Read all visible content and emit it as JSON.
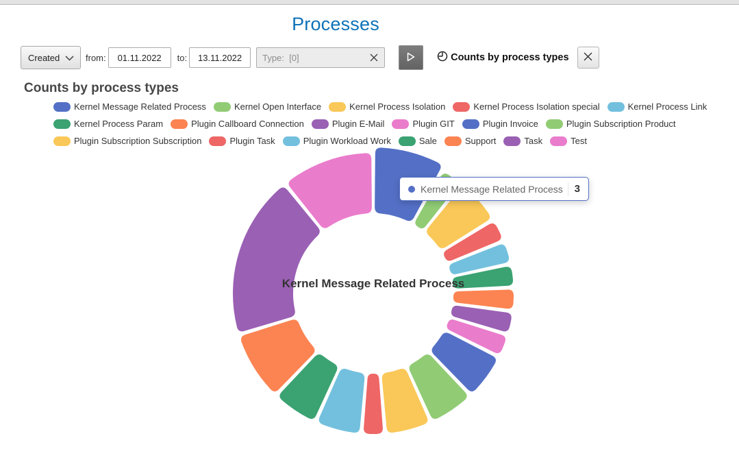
{
  "header": {
    "title": "Processes"
  },
  "toolbar": {
    "filter_select": {
      "value": "Created"
    },
    "from_label": "from:",
    "from_value": "01.11.2022",
    "to_label": "to:",
    "to_value": "13.11.2022",
    "type_field": {
      "label": "Type:",
      "value": "[0]"
    },
    "icons": {
      "filter_dropdown": "chevron-down",
      "type_clear": "x-clear",
      "run": "play-triangle",
      "chart_toggle": "clock",
      "close": "x-close"
    },
    "chart_toggle_label": "Counts by process types"
  },
  "section": {
    "heading": "Counts by process types"
  },
  "chart_data": {
    "type": "pie",
    "subtype": "donut",
    "title": "Counts by process types",
    "legend_position": "top",
    "legend_rows": [
      [
        0,
        1,
        2,
        3,
        4
      ],
      [
        5,
        6,
        7,
        8,
        9,
        10
      ],
      [
        11,
        12,
        13,
        14,
        15,
        16,
        17
      ]
    ],
    "palette": [
      "#5470c6",
      "#91cc75",
      "#fac858",
      "#ee6666",
      "#73c0de",
      "#3ba272",
      "#fc8452",
      "#9a60b4",
      "#ea7ccc"
    ],
    "series": [
      {
        "name": "Kernel Message Related Process",
        "value": 3
      },
      {
        "name": "Kernel Open Interface",
        "value": 1
      },
      {
        "name": "Kernel Process Isolation",
        "value": 2
      },
      {
        "name": "Kernel Process Isolation special",
        "value": 1
      },
      {
        "name": "Kernel Process Link",
        "value": 1
      },
      {
        "name": "Kernel Process Param",
        "value": 1
      },
      {
        "name": "Plugin Callboard Connection",
        "value": 1
      },
      {
        "name": "Plugin E-Mail",
        "value": 1
      },
      {
        "name": "Plugin GIT",
        "value": 1
      },
      {
        "name": "Plugin Invoice",
        "value": 2
      },
      {
        "name": "Plugin Subscription Product",
        "value": 2
      },
      {
        "name": "Plugin Subscription Subscription",
        "value": 2
      },
      {
        "name": "Plugin Task",
        "value": 1
      },
      {
        "name": "Plugin Workload Work",
        "value": 2
      },
      {
        "name": "Sale",
        "value": 2
      },
      {
        "name": "Support",
        "value": 3
      },
      {
        "name": "Task",
        "value": 7
      },
      {
        "name": "Test",
        "value": 4
      }
    ],
    "hover_index": 0,
    "center_label": "Kernel Message Related Process",
    "tooltip": {
      "label": "Kernel Message Related Process",
      "value": "3"
    }
  }
}
